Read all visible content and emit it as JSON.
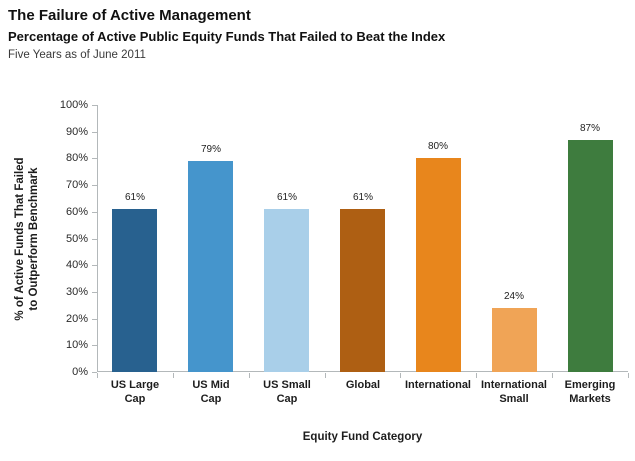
{
  "header": {
    "title": "The Failure of Active Management",
    "subtitle": "Percentage of Active Public Equity Funds That Failed to Beat the Index",
    "period": "Five Years as of June 2011"
  },
  "chart_data": {
    "type": "bar",
    "title": "The Failure of Active Management",
    "subtitle": "Percentage of Active Public Equity Funds That Failed to Beat the Index",
    "period": "Five Years as of June 2011",
    "categories": [
      "US Large Cap",
      "US Mid Cap",
      "US Small Cap",
      "Global",
      "International",
      "International Small",
      "Emerging Markets"
    ],
    "category_lines": [
      [
        "US Large",
        "Cap"
      ],
      [
        "US Mid",
        "Cap"
      ],
      [
        "US Small",
        "Cap"
      ],
      [
        "Global"
      ],
      [
        "International"
      ],
      [
        "International",
        "Small"
      ],
      [
        "Emerging",
        "Markets"
      ]
    ],
    "values": [
      61,
      79,
      61,
      61,
      80,
      24,
      87
    ],
    "value_labels": [
      "61%",
      "79%",
      "61%",
      "61%",
      "80%",
      "24%",
      "87%"
    ],
    "bar_colors": [
      "#28618F",
      "#4595CC",
      "#A9CFE9",
      "#AE5F13",
      "#E8861C",
      "#F0A456",
      "#3E7C3E"
    ],
    "xlabel": "Equity Fund Category",
    "ylabel": "% of Active Funds That Failed to Outperform Benchmark",
    "ylabel_lines": [
      "% of Active Funds That Failed",
      "to Outperform Benchmark"
    ],
    "ylim": [
      0,
      100
    ],
    "ytick_step": 10,
    "ytick_labels": [
      "0%",
      "10%",
      "20%",
      "30%",
      "40%",
      "50%",
      "60%",
      "70%",
      "80%",
      "90%",
      "100%"
    ],
    "grid": false,
    "legend": false,
    "axis_color": "#b3b8ba"
  }
}
